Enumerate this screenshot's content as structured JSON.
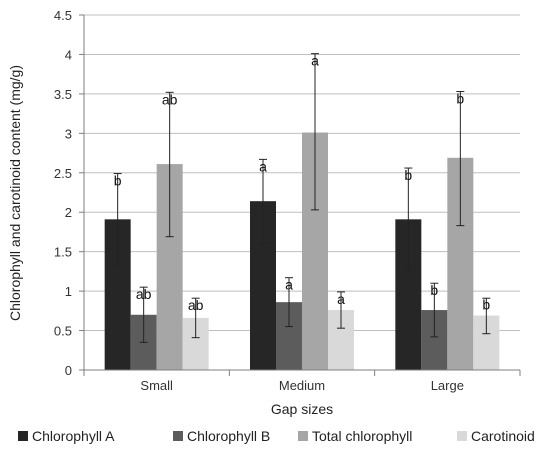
{
  "chart_data": {
    "type": "bar",
    "categories": [
      "Small",
      "Medium",
      "Large"
    ],
    "xlabel": "Gap sizes",
    "ylabel": "Chlorophyll and carotinoid content (mg/g)",
    "ylim": [
      0,
      4.5
    ],
    "yticks": [
      "0",
      "0.5",
      "1",
      "1.5",
      "2",
      "2.5",
      "3",
      "3.5",
      "4",
      "4.5"
    ],
    "ytick_values": [
      0,
      0.5,
      1,
      1.5,
      2,
      2.5,
      3,
      3.5,
      4,
      4.5
    ],
    "legend_position": "bottom",
    "gridlines": true,
    "series": [
      {
        "name": "Chlorophyll A",
        "color": "#262626",
        "values": [
          1.91,
          2.14,
          1.91
        ],
        "error_high": [
          2.49,
          2.67,
          2.56
        ],
        "error_low": [
          1.33,
          1.61,
          1.26
        ],
        "letters": [
          "b",
          "a",
          "b"
        ]
      },
      {
        "name": "Chlorophyll B",
        "color": "#5c5c5c",
        "values": [
          0.7,
          0.86,
          0.76
        ],
        "error_high": [
          1.05,
          1.17,
          1.1
        ],
        "error_low": [
          0.35,
          0.55,
          0.42
        ],
        "letters": [
          "ab",
          "a",
          "b"
        ]
      },
      {
        "name": "Total chlorophyll",
        "color": "#a6a6a6",
        "values": [
          2.61,
          3.01,
          2.69
        ],
        "error_high": [
          3.52,
          4.01,
          3.53
        ],
        "error_low": [
          1.69,
          2.03,
          1.83
        ],
        "letters": [
          "ab",
          "a",
          "b"
        ]
      },
      {
        "name": "Carotinoid",
        "color": "#d9d9d9",
        "values": [
          0.66,
          0.76,
          0.69
        ],
        "error_high": [
          0.91,
          0.99,
          0.91
        ],
        "error_low": [
          0.41,
          0.53,
          0.46
        ],
        "letters": [
          "ab",
          "a",
          "b"
        ]
      }
    ]
  }
}
